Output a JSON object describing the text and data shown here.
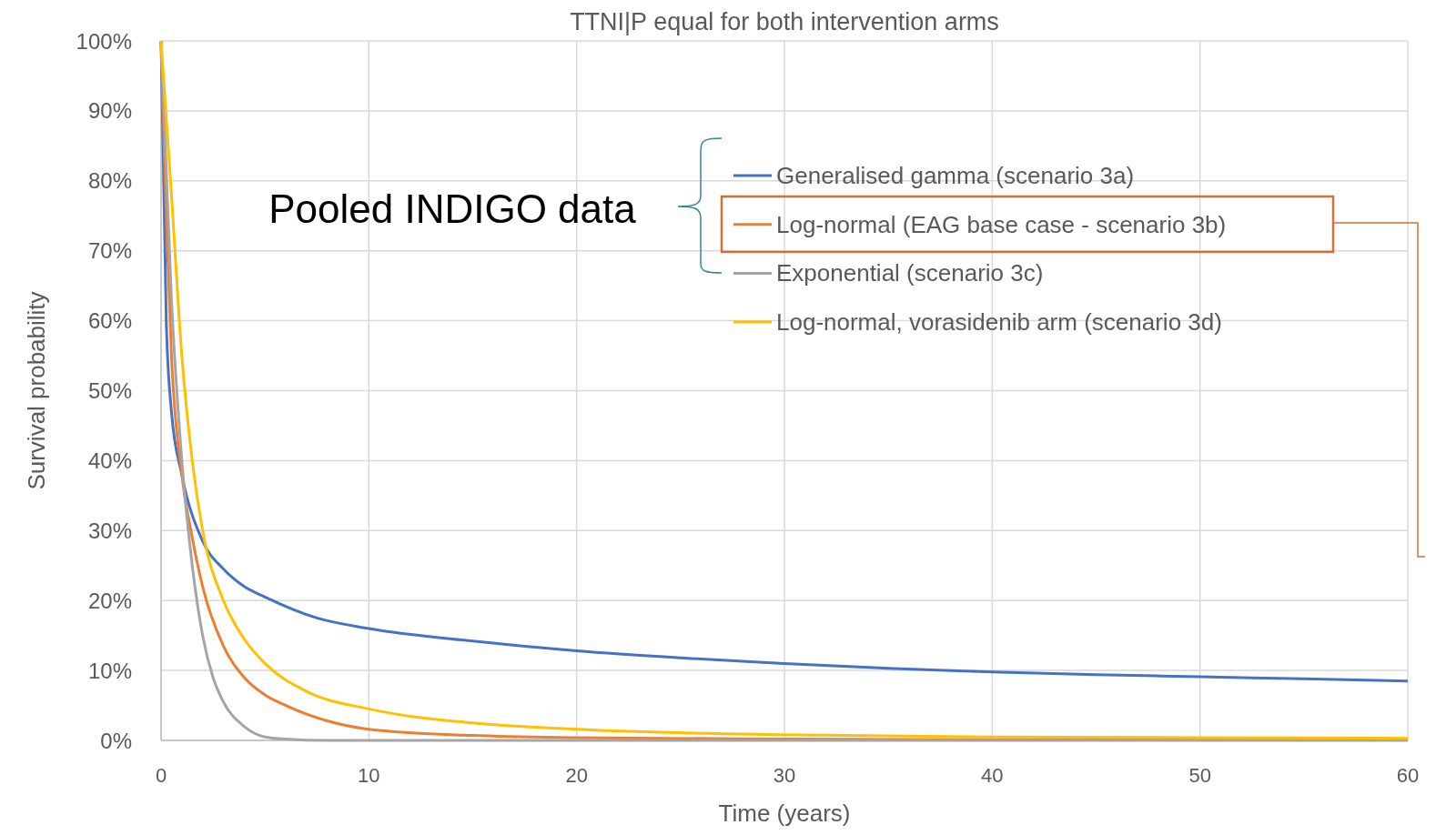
{
  "chart_data": {
    "type": "line",
    "title": "TTNI|P equal for both intervention arms",
    "xlabel": "Time (years)",
    "ylabel": "Survival probability",
    "annotations": [
      "Pooled INDIGO data"
    ],
    "xlim": [
      0,
      60
    ],
    "xticks": [
      0,
      10,
      20,
      30,
      40,
      50,
      60
    ],
    "ylim": [
      0,
      100
    ],
    "yticks": [
      {
        "value": 0,
        "label": "0%"
      },
      {
        "value": 10,
        "label": "10%"
      },
      {
        "value": 20,
        "label": "20%"
      },
      {
        "value": 30,
        "label": "30%"
      },
      {
        "value": 40,
        "label": "40%"
      },
      {
        "value": 50,
        "label": "50%"
      },
      {
        "value": 60,
        "label": "60%"
      },
      {
        "value": 70,
        "label": "70%"
      },
      {
        "value": 80,
        "label": "80%"
      },
      {
        "value": 90,
        "label": "90%"
      },
      {
        "value": 100,
        "label": "100%"
      }
    ],
    "grid": true,
    "legend": "top right",
    "marker": "none",
    "line_style": "solid",
    "series": [
      {
        "name": "Generalised gamma (scenario 3a)",
        "color": "#4472c4",
        "x": [
          0,
          0.25,
          0.5,
          1,
          2,
          3,
          4,
          5,
          7.5,
          10,
          15,
          20,
          25,
          30,
          35,
          40,
          45,
          50,
          55,
          60
        ],
        "values": [
          100,
          60,
          47,
          38,
          28.5,
          24.5,
          22,
          20.5,
          17.5,
          16,
          14.2,
          12.8,
          11.8,
          11,
          10.3,
          9.8,
          9.4,
          9.1,
          8.8,
          8.5
        ]
      },
      {
        "name": "Log-normal (EAG base case - scenario 3b)",
        "color": "#ed7d31",
        "x": [
          0,
          0.25,
          0.5,
          1,
          1.5,
          2,
          3,
          4,
          5,
          6,
          8,
          10,
          15,
          20,
          30,
          40,
          60
        ],
        "values": [
          100,
          75,
          55,
          38,
          29,
          22,
          13.5,
          9,
          6.5,
          5,
          2.8,
          1.6,
          0.7,
          0.4,
          0.2,
          0.1,
          0.1
        ]
      },
      {
        "name": "Exponential (scenario 3c)",
        "color": "#a5a5a5",
        "x": [
          0,
          0.5,
          1,
          1.5,
          2,
          2.5,
          3,
          4,
          5,
          6,
          8,
          60
        ],
        "values": [
          100,
          63,
          40,
          25,
          15,
          9,
          5.5,
          2,
          0.5,
          0.2,
          0,
          0
        ]
      },
      {
        "name": "Log-normal, vorasidenib arm (scenario 3d)",
        "color": "#ffc000",
        "x": [
          0,
          0.5,
          1,
          1.5,
          2,
          3,
          4,
          5,
          7,
          10,
          15,
          20,
          30,
          40,
          50,
          60
        ],
        "values": [
          100,
          78,
          55,
          40,
          30,
          20,
          14.5,
          11,
          7,
          4.5,
          2.5,
          1.6,
          0.8,
          0.5,
          0.4,
          0.3
        ]
      }
    ]
  }
}
